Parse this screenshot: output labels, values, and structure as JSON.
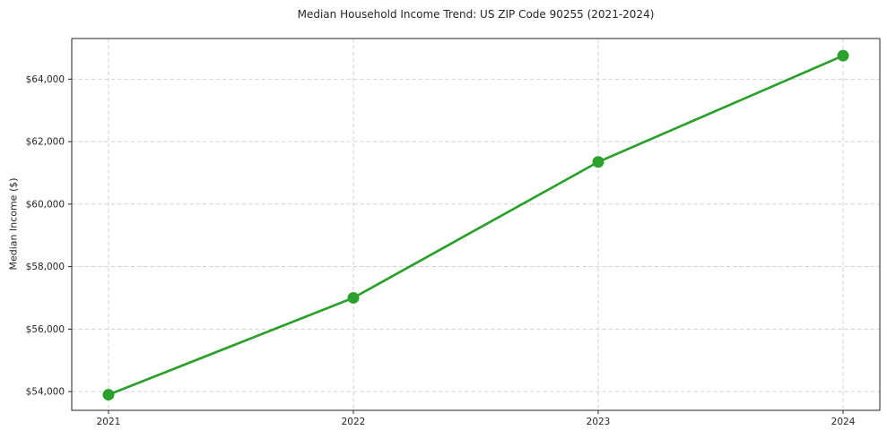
{
  "chart_data": {
    "type": "line",
    "title": "Median Household Income Trend: US ZIP Code 90255 (2021-2024)",
    "xlabel": "",
    "ylabel": "Median Income ($)",
    "categories": [
      "2021",
      "2022",
      "2023",
      "2024"
    ],
    "x": [
      2021,
      2022,
      2023,
      2024
    ],
    "series": [
      {
        "name": "Median Household Income",
        "values": [
          53900,
          57000,
          61350,
          64750
        ]
      }
    ],
    "xlim": [
      2020.85,
      2024.15
    ],
    "ylim": [
      53400,
      65300
    ],
    "yticks": [
      54000,
      56000,
      58000,
      60000,
      62000,
      64000
    ],
    "ytick_labels": [
      "$54,000",
      "$56,000",
      "$58,000",
      "$60,000",
      "$62,000",
      "$64,000"
    ],
    "grid": true,
    "grid_style": "dashed",
    "legend": "none",
    "colors": {
      "line": "#2ca02c",
      "marker": "#2ca02c",
      "grid": "#cccccc",
      "axis_border": "#262626",
      "text": "#262626",
      "background": "#ffffff"
    }
  }
}
